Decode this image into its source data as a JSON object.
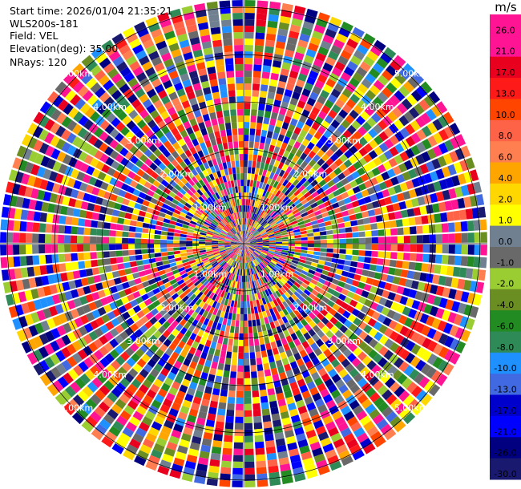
{
  "header": {
    "start_time": "Start time: 2026/01/04 21:35:21",
    "instrument": "WLS200s-181",
    "field": "Field: VEL",
    "elevation": "Elevation(deg): 35.00",
    "nrays": "NRays: 120"
  },
  "colorbar": {
    "unit": "m/s",
    "ticks": [
      "26.0",
      "21.0",
      "17.0",
      "13.0",
      "10.0",
      "8.0",
      "6.0",
      "4.0",
      "2.0",
      "1.0",
      "0.0",
      "-1.0",
      "-2.0",
      "-4.0",
      "-6.0",
      "-8.0",
      "-10.0",
      "-13.0",
      "-17.0",
      "-21.0",
      "-26.0",
      "-30.0"
    ],
    "colors": [
      "#ff1493",
      "#ff1493",
      "#e8001e",
      "#ff1a1a",
      "#ff4500",
      "#ff6347",
      "#ff7f50",
      "#ffa500",
      "#ffd700",
      "#ffff00",
      "#708090",
      "#696969",
      "#9acd32",
      "#6b8e23",
      "#228b22",
      "#2e8b57",
      "#1e90ff",
      "#4169e1",
      "#0000cd",
      "#0000ff",
      "#000080",
      "#191970"
    ]
  },
  "chart_data": {
    "type": "heatmap",
    "subtype": "polar-ppi",
    "field": "VEL",
    "n_rays": 120,
    "range_rings_km": [
      1.0,
      2.0,
      3.0,
      4.0,
      5.0
    ],
    "range_ring_labels": [
      "1.00km",
      "2.00km",
      "3.00km",
      "4.00km",
      "5.00km"
    ],
    "max_range_km": 5.0,
    "value_range": [
      -30.0,
      26.0
    ]
  }
}
